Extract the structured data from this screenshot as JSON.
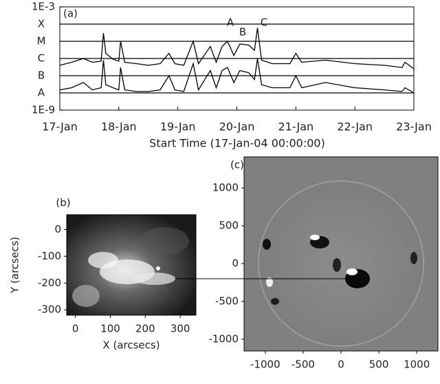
{
  "chart_data": [
    {
      "type": "line",
      "panel_label": "(a)",
      "x_label": "Start Time (17-Jan-04 00:00:00)",
      "log_y": true,
      "grid": true,
      "xlim": [
        0,
        6
      ],
      "xticks": [
        {
          "value": 0,
          "label": "17-Jan"
        },
        {
          "value": 1,
          "label": "18-Jan"
        },
        {
          "value": 2,
          "label": "19-Jan"
        },
        {
          "value": 3,
          "label": "20-Jan"
        },
        {
          "value": 4,
          "label": "21-Jan"
        },
        {
          "value": 5,
          "label": "22-Jan"
        },
        {
          "value": 6,
          "label": "23-Jan"
        }
      ],
      "ylim": [
        1e-09,
        0.001
      ],
      "yticks": [
        {
          "value": 0.001,
          "label": "1E-3"
        },
        {
          "value": 0.0001,
          "label": "X"
        },
        {
          "value": 1e-05,
          "label": "M"
        },
        {
          "value": 1e-06,
          "label": "C"
        },
        {
          "value": 1e-07,
          "label": "B"
        },
        {
          "value": 1e-08,
          "label": "A"
        },
        {
          "value": 1e-09,
          "label": "1E-9"
        }
      ],
      "annotations": [
        "A",
        "B",
        "C"
      ],
      "x": [
        0,
        0.2,
        0.4,
        0.55,
        0.7,
        0.74,
        0.78,
        0.9,
        1.0,
        1.03,
        1.1,
        1.3,
        1.5,
        1.7,
        1.85,
        1.95,
        2.1,
        2.26,
        2.35,
        2.55,
        2.65,
        2.75,
        2.84,
        2.95,
        3.05,
        3.2,
        3.3,
        3.35,
        3.42,
        3.6,
        3.9,
        4.0,
        4.1,
        4.5,
        5.0,
        5.5,
        5.8,
        5.85,
        6.0
      ],
      "series": [
        {
          "color": "#000000",
          "values": [
            4e-07,
            6e-07,
            1e-06,
            6e-07,
            7e-07,
            3e-05,
            2e-06,
            9e-07,
            7e-07,
            1e-05,
            6e-07,
            5e-07,
            4e-07,
            5e-07,
            2e-06,
            5e-07,
            4e-07,
            1e-05,
            5e-07,
            5e-06,
            6e-07,
            5e-06,
            1e-05,
            1.5e-06,
            7e-06,
            6e-06,
            3e-06,
            6e-05,
            8e-07,
            5e-07,
            5e-07,
            2e-06,
            6e-07,
            8e-07,
            5e-07,
            4e-07,
            3e-07,
            6e-07,
            2.5e-07
          ]
        },
        {
          "color": "#000000",
          "values": [
            1.5e-08,
            2e-08,
            4e-08,
            1.5e-08,
            2e-08,
            8e-07,
            3e-08,
            2e-08,
            1.5e-08,
            3e-07,
            1.5e-08,
            1.2e-08,
            1.2e-08,
            1.5e-08,
            1e-07,
            1.5e-08,
            1.2e-08,
            5e-07,
            1.5e-08,
            2e-07,
            2e-08,
            2e-07,
            3e-07,
            4e-08,
            2e-07,
            1.5e-07,
            6e-08,
            1e-06,
            3e-08,
            2e-08,
            2e-08,
            1e-07,
            2e-08,
            4e-08,
            2e-08,
            1.5e-08,
            1.2e-08,
            2e-08,
            1e-08
          ]
        }
      ]
    },
    {
      "type": "image",
      "panel_label": "(b)",
      "x_label": "X (arcsecs)",
      "y_label": "Y (arcsecs)",
      "xlim": [
        -25,
        345
      ],
      "xticks": [
        0,
        100,
        200,
        300
      ],
      "ylim": [
        -320,
        55
      ],
      "yticks": [
        0,
        -100,
        -200,
        -300
      ]
    },
    {
      "type": "image",
      "panel_label": "(c)",
      "xlim": [
        -1280,
        1280
      ],
      "xticks": [
        -1000,
        -500,
        0,
        500,
        1000
      ],
      "ylim": [
        -1155,
        1410
      ],
      "yticks": [
        1000,
        500,
        0,
        -500,
        -1000
      ]
    }
  ]
}
